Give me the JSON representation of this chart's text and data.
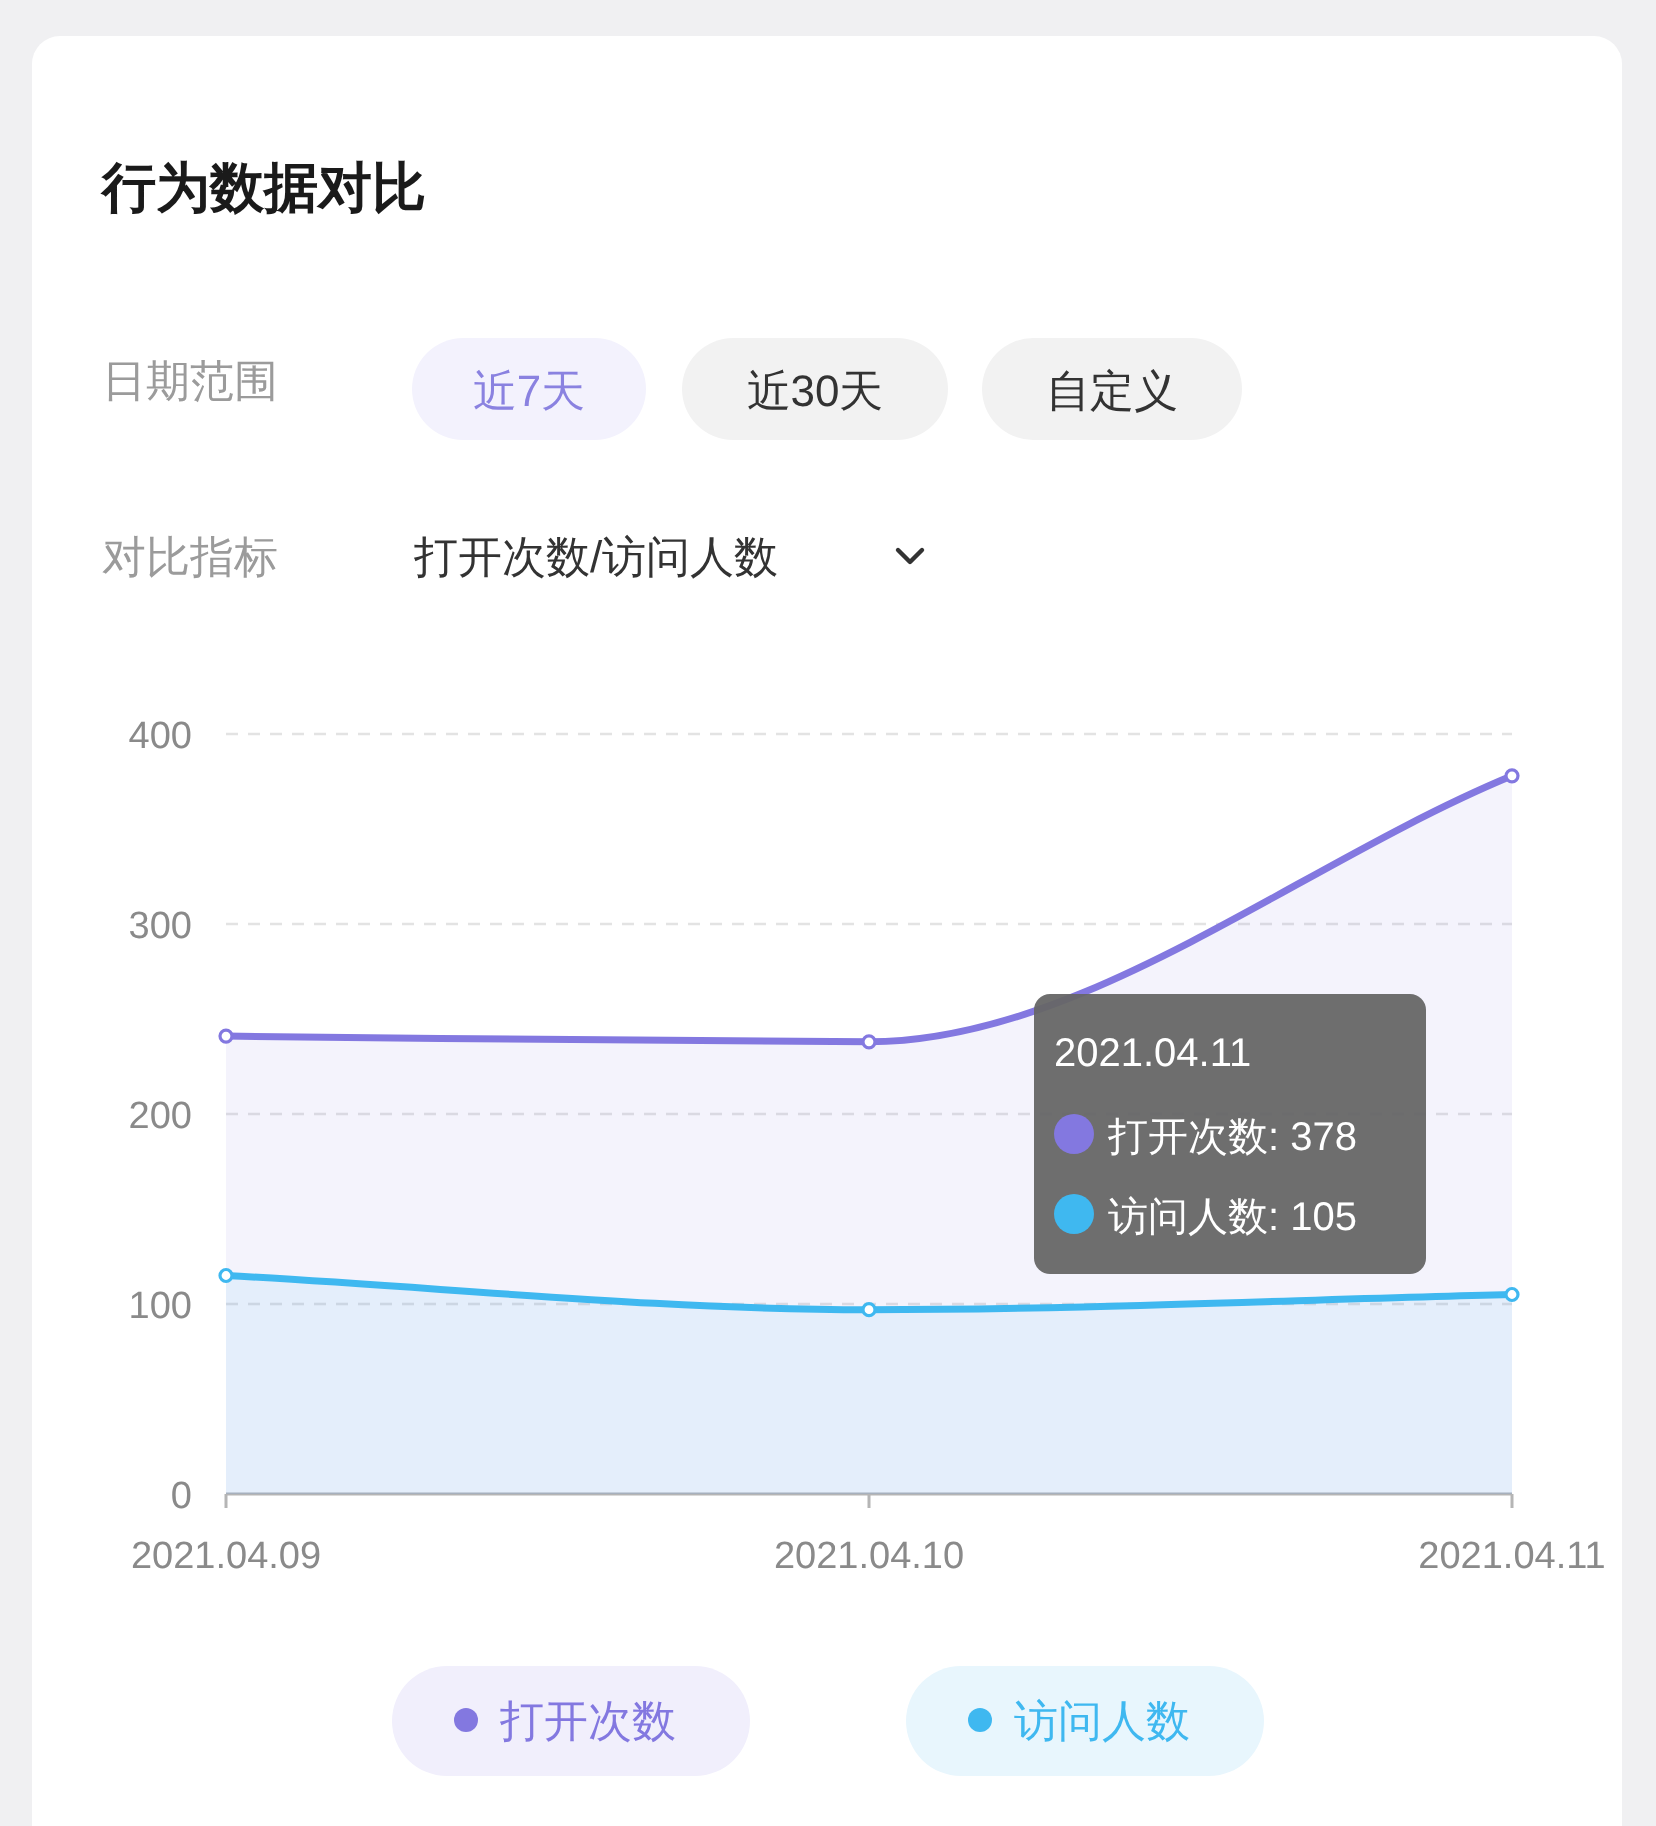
{
  "chart_data": {
    "type": "area",
    "title": "行为数据对比",
    "categories": [
      "2021.04.09",
      "2021.04.10",
      "2021.04.11"
    ],
    "series": [
      {
        "name": "打开次数",
        "color": "#8378e0",
        "values": [
          241,
          238,
          378
        ]
      },
      {
        "name": "访问人数",
        "color": "#3fb8f0",
        "values": [
          115,
          97,
          105
        ]
      }
    ],
    "ylim": [
      0,
      400
    ],
    "yticks": [
      0,
      100,
      200,
      300,
      400
    ],
    "grid": "y",
    "legend": "bottom",
    "marker": "circle",
    "annotations": [
      "日期范围",
      "近7天",
      "近30天",
      "自定义",
      "对比指标",
      "打开次数/访问人数",
      "2021.04.11",
      "打开次数: 378",
      "访问人数: 105"
    ]
  }
}
